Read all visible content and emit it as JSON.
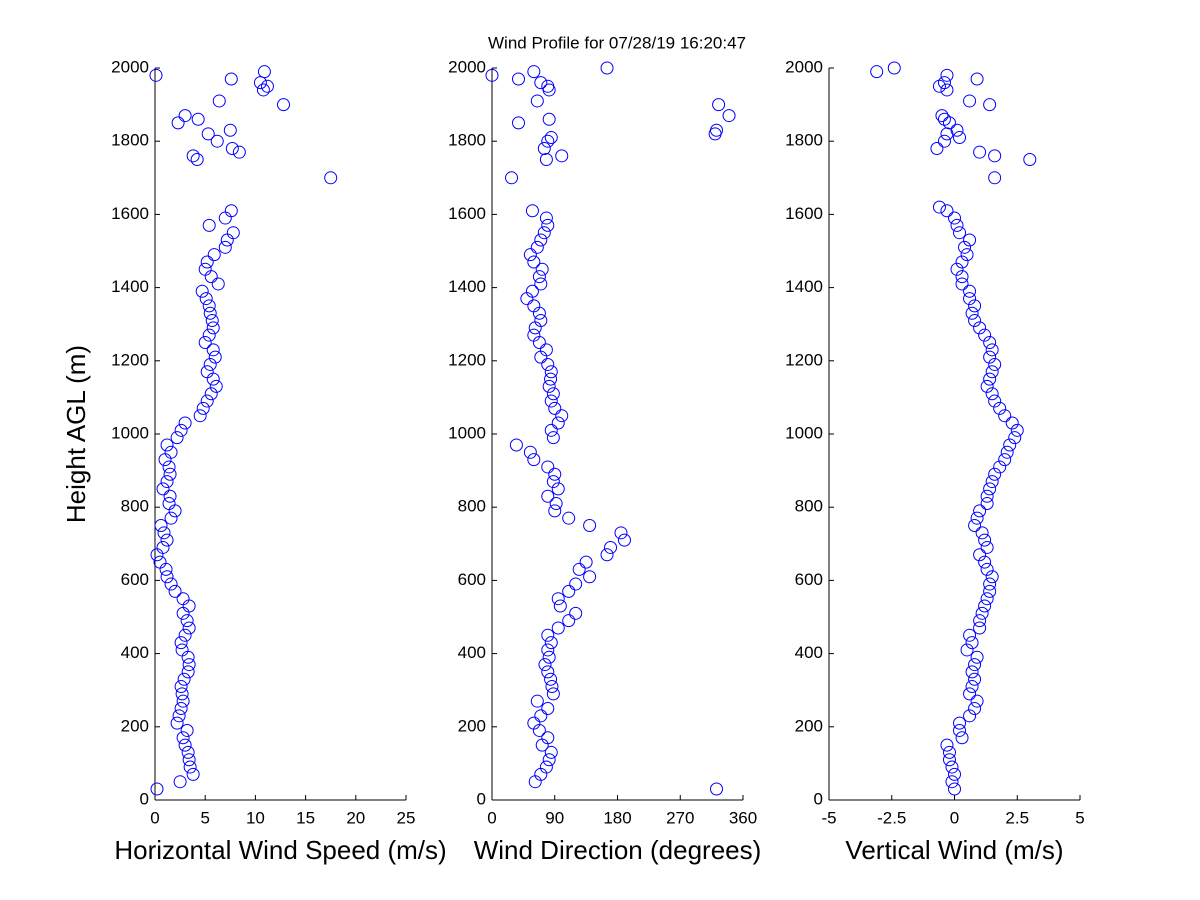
{
  "title": "Wind Profile for  07/28/19 16:20:47",
  "chart_data": [
    {
      "type": "scatter",
      "xlabel": "Horizontal Wind Speed (m/s)",
      "ylabel": "Height AGL (m)",
      "color": "#0000ff",
      "xlim": [
        0,
        25
      ],
      "xticks": [
        0,
        5,
        10,
        15,
        20,
        25
      ],
      "ylim": [
        0,
        2000
      ],
      "yticks": [
        0,
        200,
        400,
        600,
        800,
        1000,
        1200,
        1400,
        1600,
        1800,
        2000
      ],
      "x": [
        0.2,
        2.5,
        3.8,
        3.5,
        3.4,
        3.3,
        3.0,
        2.8,
        3.2,
        2.2,
        2.4,
        2.6,
        2.8,
        2.7,
        2.6,
        2.9,
        3.3,
        3.4,
        3.3,
        2.7,
        2.6,
        3.0,
        3.4,
        3.2,
        2.8,
        3.4,
        2.8,
        2.0,
        1.6,
        1.2,
        1.1,
        0.5,
        0.2,
        0.8,
        1.2,
        0.9,
        0.6,
        1.6,
        2.0,
        1.4,
        1.5,
        0.8,
        1.2,
        1.5,
        1.4,
        1.0,
        1.6,
        1.2,
        2.2,
        2.6,
        3.0,
        4.5,
        4.8,
        5.2,
        5.6,
        6.1,
        5.8,
        5.2,
        5.5,
        6.0,
        5.8,
        5.0,
        5.4,
        5.8,
        5.7,
        5.5,
        5.4,
        5.1,
        4.7,
        6.3,
        5.6,
        5.0,
        5.2,
        5.9,
        7.0,
        7.2,
        7.8,
        5.4,
        7.0,
        7.6,
        17.5,
        4.2,
        3.8,
        8.4,
        7.7,
        6.2,
        5.3,
        7.5,
        2.3,
        4.3,
        3.0,
        12.8,
        6.4,
        10.8,
        11.2,
        10.5,
        7.6,
        0.1,
        10.9
      ],
      "values": [
        30,
        50,
        70,
        90,
        110,
        130,
        150,
        170,
        190,
        210,
        230,
        250,
        270,
        290,
        310,
        330,
        350,
        370,
        390,
        410,
        430,
        450,
        470,
        490,
        510,
        530,
        550,
        570,
        590,
        610,
        630,
        650,
        670,
        690,
        710,
        730,
        750,
        770,
        790,
        810,
        830,
        850,
        870,
        890,
        910,
        930,
        950,
        970,
        990,
        1010,
        1030,
        1050,
        1070,
        1090,
        1110,
        1130,
        1150,
        1170,
        1190,
        1210,
        1230,
        1250,
        1270,
        1290,
        1310,
        1330,
        1350,
        1370,
        1390,
        1410,
        1430,
        1450,
        1470,
        1490,
        1510,
        1530,
        1550,
        1570,
        1590,
        1610,
        1700,
        1750,
        1760,
        1770,
        1780,
        1800,
        1820,
        1830,
        1850,
        1860,
        1870,
        1900,
        1910,
        1940,
        1950,
        1960,
        1970,
        1980,
        1990
      ]
    },
    {
      "type": "scatter",
      "xlabel": "Wind Direction (degrees)",
      "color": "#0000ff",
      "xlim": [
        0,
        360
      ],
      "xticks": [
        0,
        90,
        180,
        270,
        360
      ],
      "ylim": [
        0,
        2000
      ],
      "yticks": [
        0,
        200,
        400,
        600,
        800,
        1000,
        1200,
        1400,
        1600,
        1800,
        2000
      ],
      "x": [
        322,
        62,
        70,
        78,
        82,
        85,
        72,
        80,
        68,
        60,
        70,
        80,
        65,
        88,
        86,
        84,
        80,
        76,
        82,
        80,
        85,
        80,
        95,
        110,
        120,
        98,
        95,
        110,
        120,
        140,
        125,
        135,
        165,
        170,
        190,
        185,
        140,
        110,
        90,
        92,
        80,
        95,
        88,
        90,
        80,
        60,
        55,
        35,
        88,
        85,
        95,
        100,
        90,
        85,
        88,
        82,
        84,
        85,
        80,
        70,
        78,
        68,
        60,
        62,
        70,
        68,
        60,
        50,
        58,
        70,
        68,
        72,
        60,
        55,
        65,
        70,
        75,
        80,
        78,
        58,
        28,
        78,
        100,
        75,
        80,
        85,
        320,
        322,
        38,
        82,
        340,
        325,
        65,
        82,
        80,
        70,
        38,
        0,
        60,
        165
      ],
      "values": [
        30,
        50,
        70,
        90,
        110,
        130,
        150,
        170,
        190,
        210,
        230,
        250,
        270,
        290,
        310,
        330,
        350,
        370,
        390,
        410,
        430,
        450,
        470,
        490,
        510,
        530,
        550,
        570,
        590,
        610,
        630,
        650,
        670,
        690,
        710,
        730,
        750,
        770,
        790,
        810,
        830,
        850,
        870,
        890,
        910,
        930,
        950,
        970,
        990,
        1010,
        1030,
        1050,
        1070,
        1090,
        1110,
        1130,
        1150,
        1170,
        1190,
        1210,
        1230,
        1250,
        1270,
        1290,
        1310,
        1330,
        1350,
        1370,
        1390,
        1410,
        1430,
        1450,
        1470,
        1490,
        1510,
        1530,
        1550,
        1570,
        1590,
        1610,
        1700,
        1750,
        1760,
        1780,
        1800,
        1810,
        1820,
        1830,
        1850,
        1860,
        1870,
        1900,
        1910,
        1940,
        1950,
        1960,
        1970,
        1980,
        1990,
        2000
      ]
    },
    {
      "type": "scatter",
      "xlabel": "Vertical Wind (m/s)",
      "color": "#0000ff",
      "xlim": [
        -5,
        5
      ],
      "xticks": [
        -5,
        -2.5,
        0,
        2.5,
        5
      ],
      "ylim": [
        0,
        2000
      ],
      "yticks": [
        0,
        200,
        400,
        600,
        800,
        1000,
        1200,
        1400,
        1600,
        1800,
        2000
      ],
      "x": [
        0.0,
        -0.1,
        0.0,
        -0.1,
        -0.2,
        -0.2,
        -0.3,
        0.3,
        0.2,
        0.2,
        0.6,
        0.8,
        0.9,
        0.6,
        0.7,
        0.8,
        0.7,
        0.8,
        0.9,
        0.5,
        0.7,
        0.6,
        1.0,
        1.0,
        1.1,
        1.2,
        1.3,
        1.4,
        1.4,
        1.5,
        1.3,
        1.2,
        1.0,
        1.3,
        1.2,
        1.1,
        0.8,
        0.9,
        1.0,
        1.3,
        1.3,
        1.4,
        1.5,
        1.6,
        1.8,
        2.0,
        2.1,
        2.2,
        2.4,
        2.5,
        2.3,
        2.0,
        1.8,
        1.6,
        1.5,
        1.3,
        1.4,
        1.5,
        1.6,
        1.4,
        1.5,
        1.4,
        1.2,
        1.0,
        0.8,
        0.7,
        0.8,
        0.6,
        0.6,
        0.3,
        0.3,
        0.1,
        0.3,
        0.5,
        0.4,
        0.6,
        0.2,
        0.1,
        0.0,
        -0.3,
        -0.6,
        1.6,
        3.0,
        1.6,
        1.0,
        -0.7,
        -0.4,
        0.2,
        -0.3,
        0.1,
        -0.2,
        -0.4,
        -0.5,
        1.4,
        0.6,
        -0.3,
        -0.6,
        -0.4,
        0.9,
        -0.3,
        -3.1,
        -2.4
      ],
      "values": [
        30,
        50,
        70,
        90,
        110,
        130,
        150,
        170,
        190,
        210,
        230,
        250,
        270,
        290,
        310,
        330,
        350,
        370,
        390,
        410,
        430,
        450,
        470,
        490,
        510,
        530,
        550,
        570,
        590,
        610,
        630,
        650,
        670,
        690,
        710,
        730,
        750,
        770,
        790,
        810,
        830,
        850,
        870,
        890,
        910,
        930,
        950,
        970,
        990,
        1010,
        1030,
        1050,
        1070,
        1090,
        1110,
        1130,
        1150,
        1170,
        1190,
        1210,
        1230,
        1250,
        1270,
        1290,
        1310,
        1330,
        1350,
        1370,
        1390,
        1410,
        1430,
        1450,
        1470,
        1490,
        1510,
        1530,
        1550,
        1570,
        1590,
        1610,
        1620,
        1700,
        1750,
        1760,
        1770,
        1780,
        1800,
        1810,
        1820,
        1830,
        1850,
        1860,
        1870,
        1900,
        1910,
        1940,
        1950,
        1960,
        1970,
        1980,
        1990,
        2000
      ]
    }
  ]
}
